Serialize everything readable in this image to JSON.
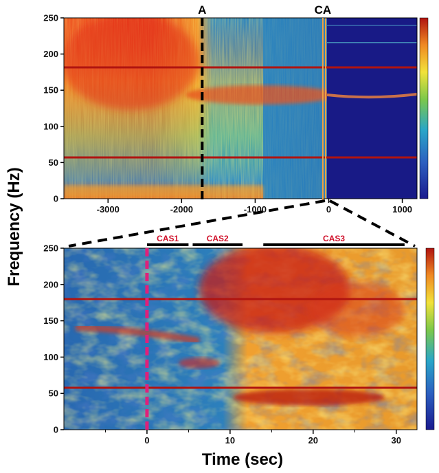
{
  "chart_data": [
    {
      "type": "heatmap",
      "ylabel": "Frequency (Hz)",
      "xlim": [
        -3600,
        1200
      ],
      "ylim": [
        0,
        250
      ],
      "x_ticks": [
        -3000,
        -2000,
        -1000,
        0,
        1000
      ],
      "y_ticks": [
        0,
        50,
        100,
        150,
        200,
        250
      ],
      "markers": [
        {
          "label": "A",
          "x": -1720,
          "style": "dashed",
          "color": "#000000"
        },
        {
          "label": "CA",
          "x": -80,
          "style": "solid",
          "color": "#f0a040"
        }
      ],
      "colorbar": true
    },
    {
      "type": "heatmap",
      "xlabel": "Time (sec)",
      "xlim": [
        -10,
        32.5
      ],
      "ylim": [
        0,
        250
      ],
      "x_ticks": [
        0,
        10,
        20,
        30
      ],
      "y_ticks": [
        0,
        50,
        100,
        150,
        200,
        250
      ],
      "marker": {
        "x": 0,
        "style": "dashed",
        "color": "#e0207a"
      },
      "segments": [
        {
          "label": "CAS1",
          "start": 0,
          "end": 5
        },
        {
          "label": "CAS2",
          "start": 5.5,
          "end": 11.5
        },
        {
          "label": "CAS3",
          "start": 14,
          "end": 31
        }
      ],
      "colorbar": true
    }
  ],
  "colors": {
    "bg_dark": "#1a1a8e",
    "bg_mid": "#2a7ab8",
    "hot": "#d82818",
    "cas_label": "#d0102a",
    "marker_magenta": "#e0207a"
  }
}
